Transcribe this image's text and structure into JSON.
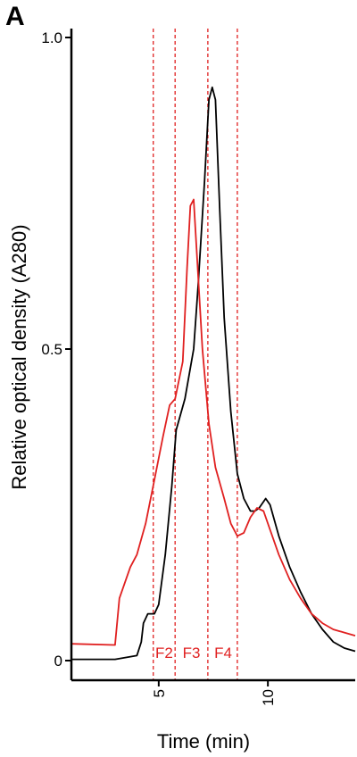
{
  "panel_label": "A",
  "chart_data": {
    "type": "line",
    "xlabel": "Time (min)",
    "ylabel": "Relative optical density (A280)",
    "xlim": [
      1,
      14
    ],
    "ylim": [
      0,
      1.0
    ],
    "x_ticks": [
      {
        "value": 5,
        "label": "5"
      },
      {
        "value": 10,
        "label": "10"
      }
    ],
    "y_ticks": [
      {
        "value": 0,
        "label": "0"
      },
      {
        "value": 0.5,
        "label": "0.5"
      },
      {
        "value": 1.0,
        "label": "1.0"
      }
    ],
    "grid": false,
    "legend": "none",
    "fraction_lines": {
      "color": "#e02020",
      "boundaries": [
        4.75,
        5.75,
        7.25,
        8.6
      ],
      "labels": [
        {
          "text": "F2",
          "x": 5.25
        },
        {
          "text": "F3",
          "x": 6.5
        },
        {
          "text": "F4",
          "x": 7.95
        }
      ]
    },
    "series": [
      {
        "color": "#000000",
        "x": [
          1.0,
          3.0,
          4.0,
          4.2,
          4.3,
          4.5,
          4.8,
          5.0,
          5.3,
          5.6,
          5.8,
          6.2,
          6.6,
          6.8,
          7.1,
          7.3,
          7.45,
          7.6,
          7.8,
          8.0,
          8.3,
          8.6,
          8.9,
          9.2,
          9.4,
          9.6,
          9.9,
          10.1,
          10.5,
          11.0,
          11.5,
          12.0,
          12.5,
          13.0,
          13.5,
          14.0
        ],
        "y": [
          0.002,
          0.002,
          0.008,
          0.03,
          0.06,
          0.075,
          0.075,
          0.09,
          0.17,
          0.28,
          0.37,
          0.42,
          0.5,
          0.6,
          0.77,
          0.9,
          0.92,
          0.9,
          0.72,
          0.55,
          0.4,
          0.3,
          0.26,
          0.24,
          0.24,
          0.245,
          0.26,
          0.25,
          0.2,
          0.15,
          0.11,
          0.075,
          0.05,
          0.03,
          0.02,
          0.015
        ]
      },
      {
        "color": "#e02020",
        "x": [
          1.0,
          3.0,
          3.2,
          3.4,
          3.7,
          4.0,
          4.4,
          4.8,
          5.2,
          5.5,
          5.75,
          6.1,
          6.3,
          6.45,
          6.6,
          6.8,
          7.0,
          7.3,
          7.6,
          8.0,
          8.3,
          8.6,
          8.9,
          9.2,
          9.5,
          9.8,
          10.1,
          10.5,
          11.0,
          11.5,
          12.0,
          12.5,
          13.0,
          13.5,
          14.0
        ],
        "y": [
          0.027,
          0.025,
          0.1,
          0.12,
          0.15,
          0.17,
          0.22,
          0.29,
          0.36,
          0.41,
          0.42,
          0.48,
          0.63,
          0.73,
          0.74,
          0.62,
          0.5,
          0.38,
          0.31,
          0.26,
          0.22,
          0.2,
          0.205,
          0.23,
          0.245,
          0.24,
          0.21,
          0.17,
          0.13,
          0.1,
          0.075,
          0.06,
          0.05,
          0.045,
          0.04
        ]
      }
    ]
  }
}
